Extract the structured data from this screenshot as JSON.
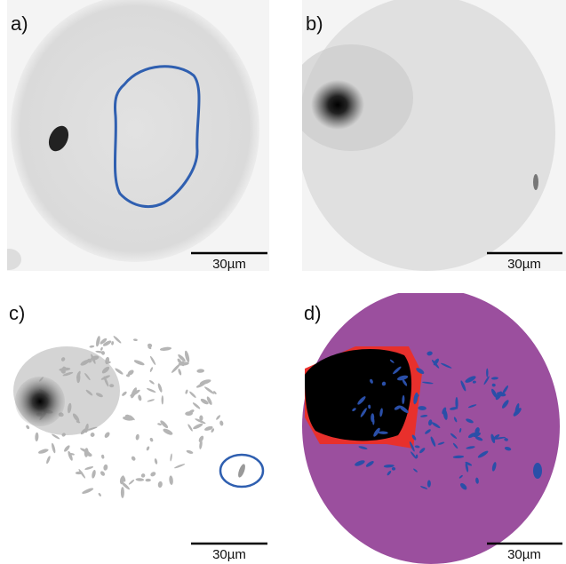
{
  "panels": [
    {
      "label": "a)",
      "scale_bar": "30µm"
    },
    {
      "label": "b)",
      "scale_bar": "30µm"
    },
    {
      "label": "c)",
      "scale_bar": "30µm"
    },
    {
      "label": "d)",
      "scale_bar": "30µm"
    }
  ]
}
